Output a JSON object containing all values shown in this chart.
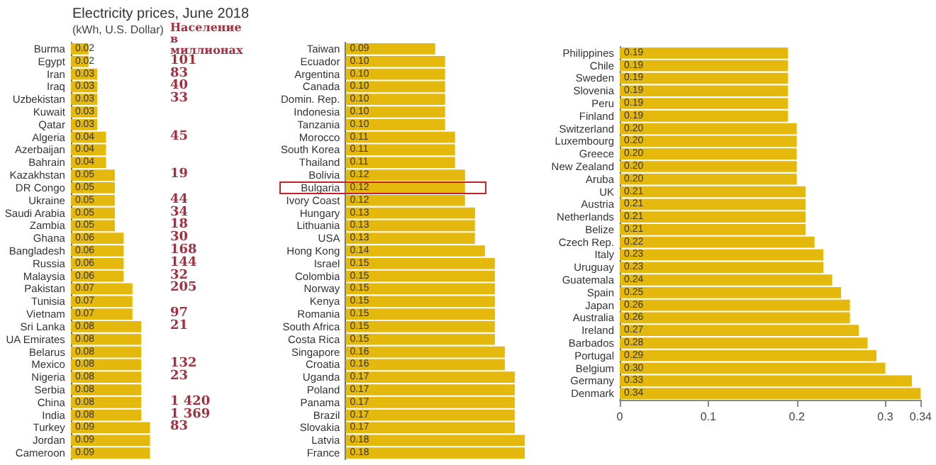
{
  "chart_data": [
    {
      "type": "bar",
      "orientation": "horizontal",
      "title": "Electricity prices, June 2018",
      "subtitle": "(kWh, U.S. Dollar)",
      "color": "#e4b80c",
      "tick_labels": "y",
      "grid": false,
      "categories": [
        "Burma",
        "Egypt",
        "Iran",
        "Iraq",
        "Uzbekistan",
        "Kuwait",
        "Qatar",
        "Algeria",
        "Azerbaijan",
        "Bahrain",
        "Kazakhstan",
        "DR Congo",
        "Ukraine",
        "Saudi Arabia",
        "Zambia",
        "Ghana",
        "Bangladesh",
        "Russia",
        "Malaysia",
        "Pakistan",
        "Tunisia",
        "Vietnam",
        "Sri Lanka",
        "UA Emirates",
        "Belarus",
        "Mexico",
        "Nigeria",
        "Serbia",
        "China",
        "India",
        "Turkey",
        "Jordan",
        "Cameroon"
      ],
      "values": [
        0.02,
        0.02,
        0.03,
        0.03,
        0.03,
        0.03,
        0.03,
        0.04,
        0.04,
        0.04,
        0.05,
        0.05,
        0.05,
        0.05,
        0.05,
        0.06,
        0.06,
        0.06,
        0.06,
        0.07,
        0.07,
        0.07,
        0.08,
        0.08,
        0.08,
        0.08,
        0.08,
        0.08,
        0.08,
        0.08,
        0.09,
        0.09,
        0.09
      ],
      "value_labels": [
        "0.02",
        "0.02",
        "0.03",
        "0.03",
        "0.03",
        "0.03",
        "0.03",
        "0.04",
        "0.04",
        "0.04",
        "0.05",
        "0.05",
        "0.05",
        "0.05",
        "0.05",
        "0.06",
        "0.06",
        "0.06",
        "0.06",
        "0.07",
        "0.07",
        "0.07",
        "0.08",
        "0.08",
        "0.08",
        "0.08",
        "0.08",
        "0.08",
        "0.08",
        "0.08",
        "0.09",
        "0.09",
        "0.09"
      ],
      "annotations": [
        "Население в миллионах",
        "101",
        "83",
        "40",
        "33",
        "45",
        "19",
        "44",
        "34",
        "18",
        "30",
        "168",
        "144",
        "32",
        "205",
        "97",
        "21",
        "132",
        "23",
        "1 420",
        "1 369",
        "83"
      ]
    },
    {
      "type": "bar",
      "orientation": "horizontal",
      "color": "#e4b80c",
      "tick_labels": "y",
      "grid": false,
      "categories": [
        "Taiwan",
        "Ecuador",
        "Argentina",
        "Canada",
        "Domin. Rep.",
        "Indonesia",
        "Tanzania",
        "Morocco",
        "South Korea",
        "Thailand",
        "Bolivia",
        "Bulgaria",
        "Ivory Coast",
        "Hungary",
        "Lithuania",
        "USA",
        "Hong Kong",
        "Israel",
        "Colombia",
        "Norway",
        "Kenya",
        "Romania",
        "South Africa",
        "Costa Rica",
        "Singapore",
        "Croatia",
        "Uganda",
        "Poland",
        "Panama",
        "Brazil",
        "Slovakia",
        "Latvia",
        "France"
      ],
      "values": [
        0.09,
        0.1,
        0.1,
        0.1,
        0.1,
        0.1,
        0.1,
        0.11,
        0.11,
        0.11,
        0.12,
        0.12,
        0.12,
        0.13,
        0.13,
        0.13,
        0.14,
        0.15,
        0.15,
        0.15,
        0.15,
        0.15,
        0.15,
        0.15,
        0.16,
        0.16,
        0.17,
        0.17,
        0.17,
        0.17,
        0.17,
        0.18,
        0.18
      ],
      "value_labels": [
        "0.09",
        "0.10",
        "0.10",
        "0.10",
        "0.10",
        "0.10",
        "0.10",
        "0.11",
        "0.11",
        "0.11",
        "0.12",
        "0.12",
        "0.12",
        "0.13",
        "0.13",
        "0.13",
        "0.14",
        "0.15",
        "0.15",
        "0.15",
        "0.15",
        "0.15",
        "0.15",
        "0.15",
        "0.16",
        "0.16",
        "0.17",
        "0.17",
        "0.17",
        "0.17",
        "0.17",
        "0.18",
        "0.18"
      ]
    },
    {
      "type": "bar",
      "orientation": "horizontal",
      "color": "#e4b80c",
      "xlim": [
        0,
        0.34
      ],
      "xticks": [
        0,
        0.1,
        0.2,
        0.3,
        0.34
      ],
      "grid": false,
      "categories": [
        "Philippines",
        "Chile",
        "Sweden",
        "Slovenia",
        "Peru",
        "Finland",
        "Switzerland",
        "Luxembourg",
        "Greece",
        "New Zealand",
        "Aruba",
        "UK",
        "Austria",
        "Netherlands",
        "Belize",
        "Czech Rep.",
        "Italy",
        "Uruguay",
        "Guatemala",
        "Spain",
        "Japan",
        "Australia",
        "Ireland",
        "Barbados",
        "Portugal",
        "Belgium",
        "Germany",
        "Denmark"
      ],
      "values": [
        0.19,
        0.19,
        0.19,
        0.19,
        0.19,
        0.19,
        0.2,
        0.2,
        0.2,
        0.2,
        0.2,
        0.21,
        0.21,
        0.21,
        0.21,
        0.22,
        0.23,
        0.23,
        0.24,
        0.25,
        0.26,
        0.26,
        0.27,
        0.28,
        0.29,
        0.3,
        0.33,
        0.34
      ],
      "value_labels": [
        "0.19",
        "0.19",
        "0.19",
        "0.19",
        "0.19",
        "0.19",
        "0.20",
        "0.20",
        "0.20",
        "0.20",
        "0.20",
        "0.21",
        "0.21",
        "0.21",
        "0.21",
        "0.22",
        "0.23",
        "0.23",
        "0.24",
        "0.25",
        "0.26",
        "0.26",
        "0.27",
        "0.28",
        "0.29",
        "0.30",
        "0.33",
        "0.34"
      ]
    }
  ]
}
